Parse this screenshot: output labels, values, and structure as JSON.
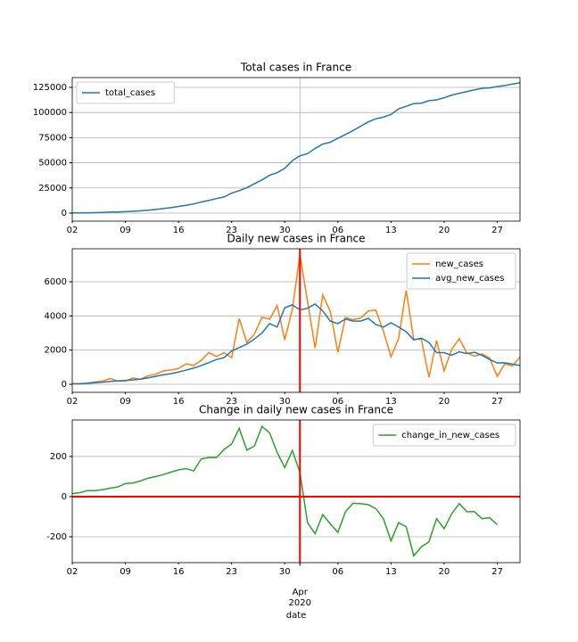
{
  "chart_data": [
    {
      "type": "line",
      "title": "Total cases in France",
      "x": [
        "2020-03-02",
        "2020-03-03",
        "2020-03-04",
        "2020-03-05",
        "2020-03-06",
        "2020-03-07",
        "2020-03-08",
        "2020-03-09",
        "2020-03-10",
        "2020-03-11",
        "2020-03-12",
        "2020-03-13",
        "2020-03-14",
        "2020-03-15",
        "2020-03-16",
        "2020-03-17",
        "2020-03-18",
        "2020-03-19",
        "2020-03-20",
        "2020-03-21",
        "2020-03-22",
        "2020-03-23",
        "2020-03-24",
        "2020-03-25",
        "2020-03-26",
        "2020-03-27",
        "2020-03-28",
        "2020-03-29",
        "2020-03-30",
        "2020-03-31",
        "2020-04-01",
        "2020-04-02",
        "2020-04-03",
        "2020-04-04",
        "2020-04-05",
        "2020-04-06",
        "2020-04-07",
        "2020-04-08",
        "2020-04-09",
        "2020-04-10",
        "2020-04-11",
        "2020-04-12",
        "2020-04-13",
        "2020-04-14",
        "2020-04-15",
        "2020-04-16",
        "2020-04-17",
        "2020-04-18",
        "2020-04-19",
        "2020-04-20",
        "2020-04-21",
        "2020-04-22",
        "2020-04-23",
        "2020-04-24",
        "2020-04-25",
        "2020-04-26",
        "2020-04-27",
        "2020-04-28",
        "2020-04-29",
        "2020-04-30"
      ],
      "series": [
        {
          "name": "total_cases",
          "color": "#1f77b4",
          "values": [
            191,
            212,
            285,
            423,
            613,
            949,
            1126,
            1412,
            1784,
            2281,
            2876,
            3661,
            4499,
            5423,
            6633,
            7730,
            9134,
            10995,
            12612,
            14459,
            16018,
            19856,
            22304,
            25233,
            29155,
            32964,
            37575,
            40174,
            44550,
            52128,
            56989,
            59105,
            64338,
            68605,
            70478,
            74390,
            78167,
            82048,
            86334,
            90676,
            93790,
            95403,
            98076,
            103573,
            106206,
            108847,
            109252,
            111821,
            112606,
            114657,
            117324,
            119151,
            120804,
            122577,
            124114,
            124575,
            125770,
            126835,
            128339,
            129500
          ]
        }
      ],
      "xlim": [
        "2020-03-02",
        "2020-04-30"
      ],
      "xticks": [
        {
          "value": "2020-03-02",
          "label": "02"
        },
        {
          "value": "2020-03-09",
          "label": "09"
        },
        {
          "value": "2020-03-16",
          "label": "16"
        },
        {
          "value": "2020-03-23",
          "label": "23"
        },
        {
          "value": "2020-03-30",
          "label": "30"
        },
        {
          "value": "2020-04-06",
          "label": "06"
        },
        {
          "value": "2020-04-13",
          "label": "13"
        },
        {
          "value": "2020-04-20",
          "label": "20"
        },
        {
          "value": "2020-04-27",
          "label": "27"
        }
      ],
      "xgrid": [
        "2020-04-01"
      ],
      "ylim": [
        -8000,
        134750
      ],
      "yticks": [
        0,
        25000,
        50000,
        75000,
        100000,
        125000
      ],
      "grid": true,
      "legend": "upper left"
    },
    {
      "type": "line",
      "title": "Daily new cases in France",
      "x": [
        "2020-03-02",
        "2020-03-03",
        "2020-03-04",
        "2020-03-05",
        "2020-03-06",
        "2020-03-07",
        "2020-03-08",
        "2020-03-09",
        "2020-03-10",
        "2020-03-11",
        "2020-03-12",
        "2020-03-13",
        "2020-03-14",
        "2020-03-15",
        "2020-03-16",
        "2020-03-17",
        "2020-03-18",
        "2020-03-19",
        "2020-03-20",
        "2020-03-21",
        "2020-03-22",
        "2020-03-23",
        "2020-03-24",
        "2020-03-25",
        "2020-03-26",
        "2020-03-27",
        "2020-03-28",
        "2020-03-29",
        "2020-03-30",
        "2020-03-31",
        "2020-04-01",
        "2020-04-02",
        "2020-04-03",
        "2020-04-04",
        "2020-04-05",
        "2020-04-06",
        "2020-04-07",
        "2020-04-08",
        "2020-04-09",
        "2020-04-10",
        "2020-04-11",
        "2020-04-12",
        "2020-04-13",
        "2020-04-14",
        "2020-04-15",
        "2020-04-16",
        "2020-04-17",
        "2020-04-18",
        "2020-04-19",
        "2020-04-20",
        "2020-04-21",
        "2020-04-22",
        "2020-04-23",
        "2020-04-24",
        "2020-04-25",
        "2020-04-26",
        "2020-04-27",
        "2020-04-28",
        "2020-04-29",
        "2020-04-30"
      ],
      "series": [
        {
          "name": "new_cases",
          "color": "#ff7f0e",
          "values": [
            30,
            20,
            70,
            140,
            190,
            340,
            180,
            190,
            370,
            300,
            500,
            590,
            780,
            840,
            920,
            1200,
            1100,
            1400,
            1860,
            1620,
            1850,
            1560,
            3840,
            2450,
            2930,
            3920,
            3810,
            4610,
            2600,
            4380,
            7580,
            4860,
            2120,
            5230,
            4270,
            1870,
            3910,
            3780,
            3880,
            4290,
            4340,
            3110,
            1610,
            2670,
            5500,
            2630,
            2640,
            410,
            2570,
            790,
            2050,
            2670,
            1830,
            1650,
            1770,
            1540,
            460,
            1200,
            1070,
            1600
          ]
        },
        {
          "name": "avg_new_cases",
          "color": "#1f77b4",
          "values": [
            30,
            40,
            60,
            90,
            120,
            170,
            200,
            220,
            260,
            300,
            380,
            470,
            560,
            620,
            720,
            830,
            950,
            1100,
            1270,
            1450,
            1560,
            1950,
            2150,
            2350,
            2650,
            3000,
            3550,
            3350,
            4480,
            4650,
            4350,
            4450,
            4700,
            4300,
            3700,
            3550,
            3820,
            3700,
            3700,
            3860,
            3500,
            3350,
            3600,
            3350,
            3080,
            2600,
            2700,
            2450,
            1850,
            1850,
            1700,
            1900,
            1800,
            1870,
            1700,
            1450,
            1250,
            1260,
            1180,
            1100
          ]
        }
      ],
      "xlim": [
        "2020-03-02",
        "2020-04-30"
      ],
      "xticks": [
        {
          "value": "2020-03-02",
          "label": "02"
        },
        {
          "value": "2020-03-09",
          "label": "09"
        },
        {
          "value": "2020-03-16",
          "label": "16"
        },
        {
          "value": "2020-03-23",
          "label": "23"
        },
        {
          "value": "2020-03-30",
          "label": "30"
        },
        {
          "value": "2020-04-06",
          "label": "06"
        },
        {
          "value": "2020-04-13",
          "label": "13"
        },
        {
          "value": "2020-04-20",
          "label": "20"
        },
        {
          "value": "2020-04-27",
          "label": "27"
        }
      ],
      "ylim": [
        -470,
        7930
      ],
      "yticks": [
        0,
        2000,
        4000,
        6000
      ],
      "grid": true,
      "legend": "upper right",
      "vline": "2020-04-01",
      "reference_color": "#ff0000"
    },
    {
      "type": "line",
      "title": "Change in daily new cases in France",
      "x": [
        "2020-03-02",
        "2020-03-03",
        "2020-03-04",
        "2020-03-05",
        "2020-03-06",
        "2020-03-07",
        "2020-03-08",
        "2020-03-09",
        "2020-03-10",
        "2020-03-11",
        "2020-03-12",
        "2020-03-13",
        "2020-03-14",
        "2020-03-15",
        "2020-03-16",
        "2020-03-17",
        "2020-03-18",
        "2020-03-19",
        "2020-03-20",
        "2020-03-21",
        "2020-03-22",
        "2020-03-23",
        "2020-03-24",
        "2020-03-25",
        "2020-03-26",
        "2020-03-27",
        "2020-03-28",
        "2020-03-29",
        "2020-03-30",
        "2020-03-31",
        "2020-04-01",
        "2020-04-02",
        "2020-04-03",
        "2020-04-04",
        "2020-04-05",
        "2020-04-06",
        "2020-04-07",
        "2020-04-08",
        "2020-04-09",
        "2020-04-10",
        "2020-04-11",
        "2020-04-12",
        "2020-04-13",
        "2020-04-14",
        "2020-04-15",
        "2020-04-16",
        "2020-04-17",
        "2020-04-18",
        "2020-04-19",
        "2020-04-20",
        "2020-04-21",
        "2020-04-22",
        "2020-04-23",
        "2020-04-24",
        "2020-04-25",
        "2020-04-26",
        "2020-04-27",
        "2020-04-28",
        "2020-04-29",
        "2020-04-30"
      ],
      "series": [
        {
          "name": "change_in_new_cases",
          "color": "#2ca02c",
          "values": [
            15,
            20,
            30,
            30,
            35,
            42,
            48,
            65,
            68,
            78,
            92,
            100,
            110,
            122,
            133,
            140,
            128,
            188,
            195,
            195,
            235,
            262,
            340,
            232,
            252,
            350,
            318,
            220,
            145,
            230,
            120,
            -130,
            -185,
            -90,
            -135,
            -178,
            -75,
            -33,
            -35,
            -40,
            -60,
            -110,
            -220,
            -130,
            -150,
            -295,
            -250,
            -225,
            -110,
            -160,
            -85,
            -35,
            -75,
            -75,
            -110,
            -105,
            -140,
            null,
            null,
            null
          ]
        }
      ],
      "xlim": [
        "2020-03-02",
        "2020-04-30"
      ],
      "xticks": [
        {
          "value": "2020-03-02",
          "label": "02"
        },
        {
          "value": "2020-03-09",
          "label": "09"
        },
        {
          "value": "2020-03-16",
          "label": "16"
        },
        {
          "value": "2020-03-23",
          "label": "23"
        },
        {
          "value": "2020-03-30",
          "label": "30"
        },
        {
          "value": "2020-04-06",
          "label": "06"
        },
        {
          "value": "2020-04-13",
          "label": "13"
        },
        {
          "value": "2020-04-20",
          "label": "20"
        },
        {
          "value": "2020-04-27",
          "label": "27"
        }
      ],
      "x_month_ticks": [
        {
          "value": "2020-04-01",
          "label": "Apr"
        }
      ],
      "x_year_label": "2020",
      "xlabel": "date",
      "ylim": [
        -329,
        382
      ],
      "yticks": [
        -200,
        0,
        200
      ],
      "grid": true,
      "legend": "upper right",
      "vline": "2020-04-01",
      "hline": 0,
      "reference_color": "#ff0000"
    }
  ]
}
